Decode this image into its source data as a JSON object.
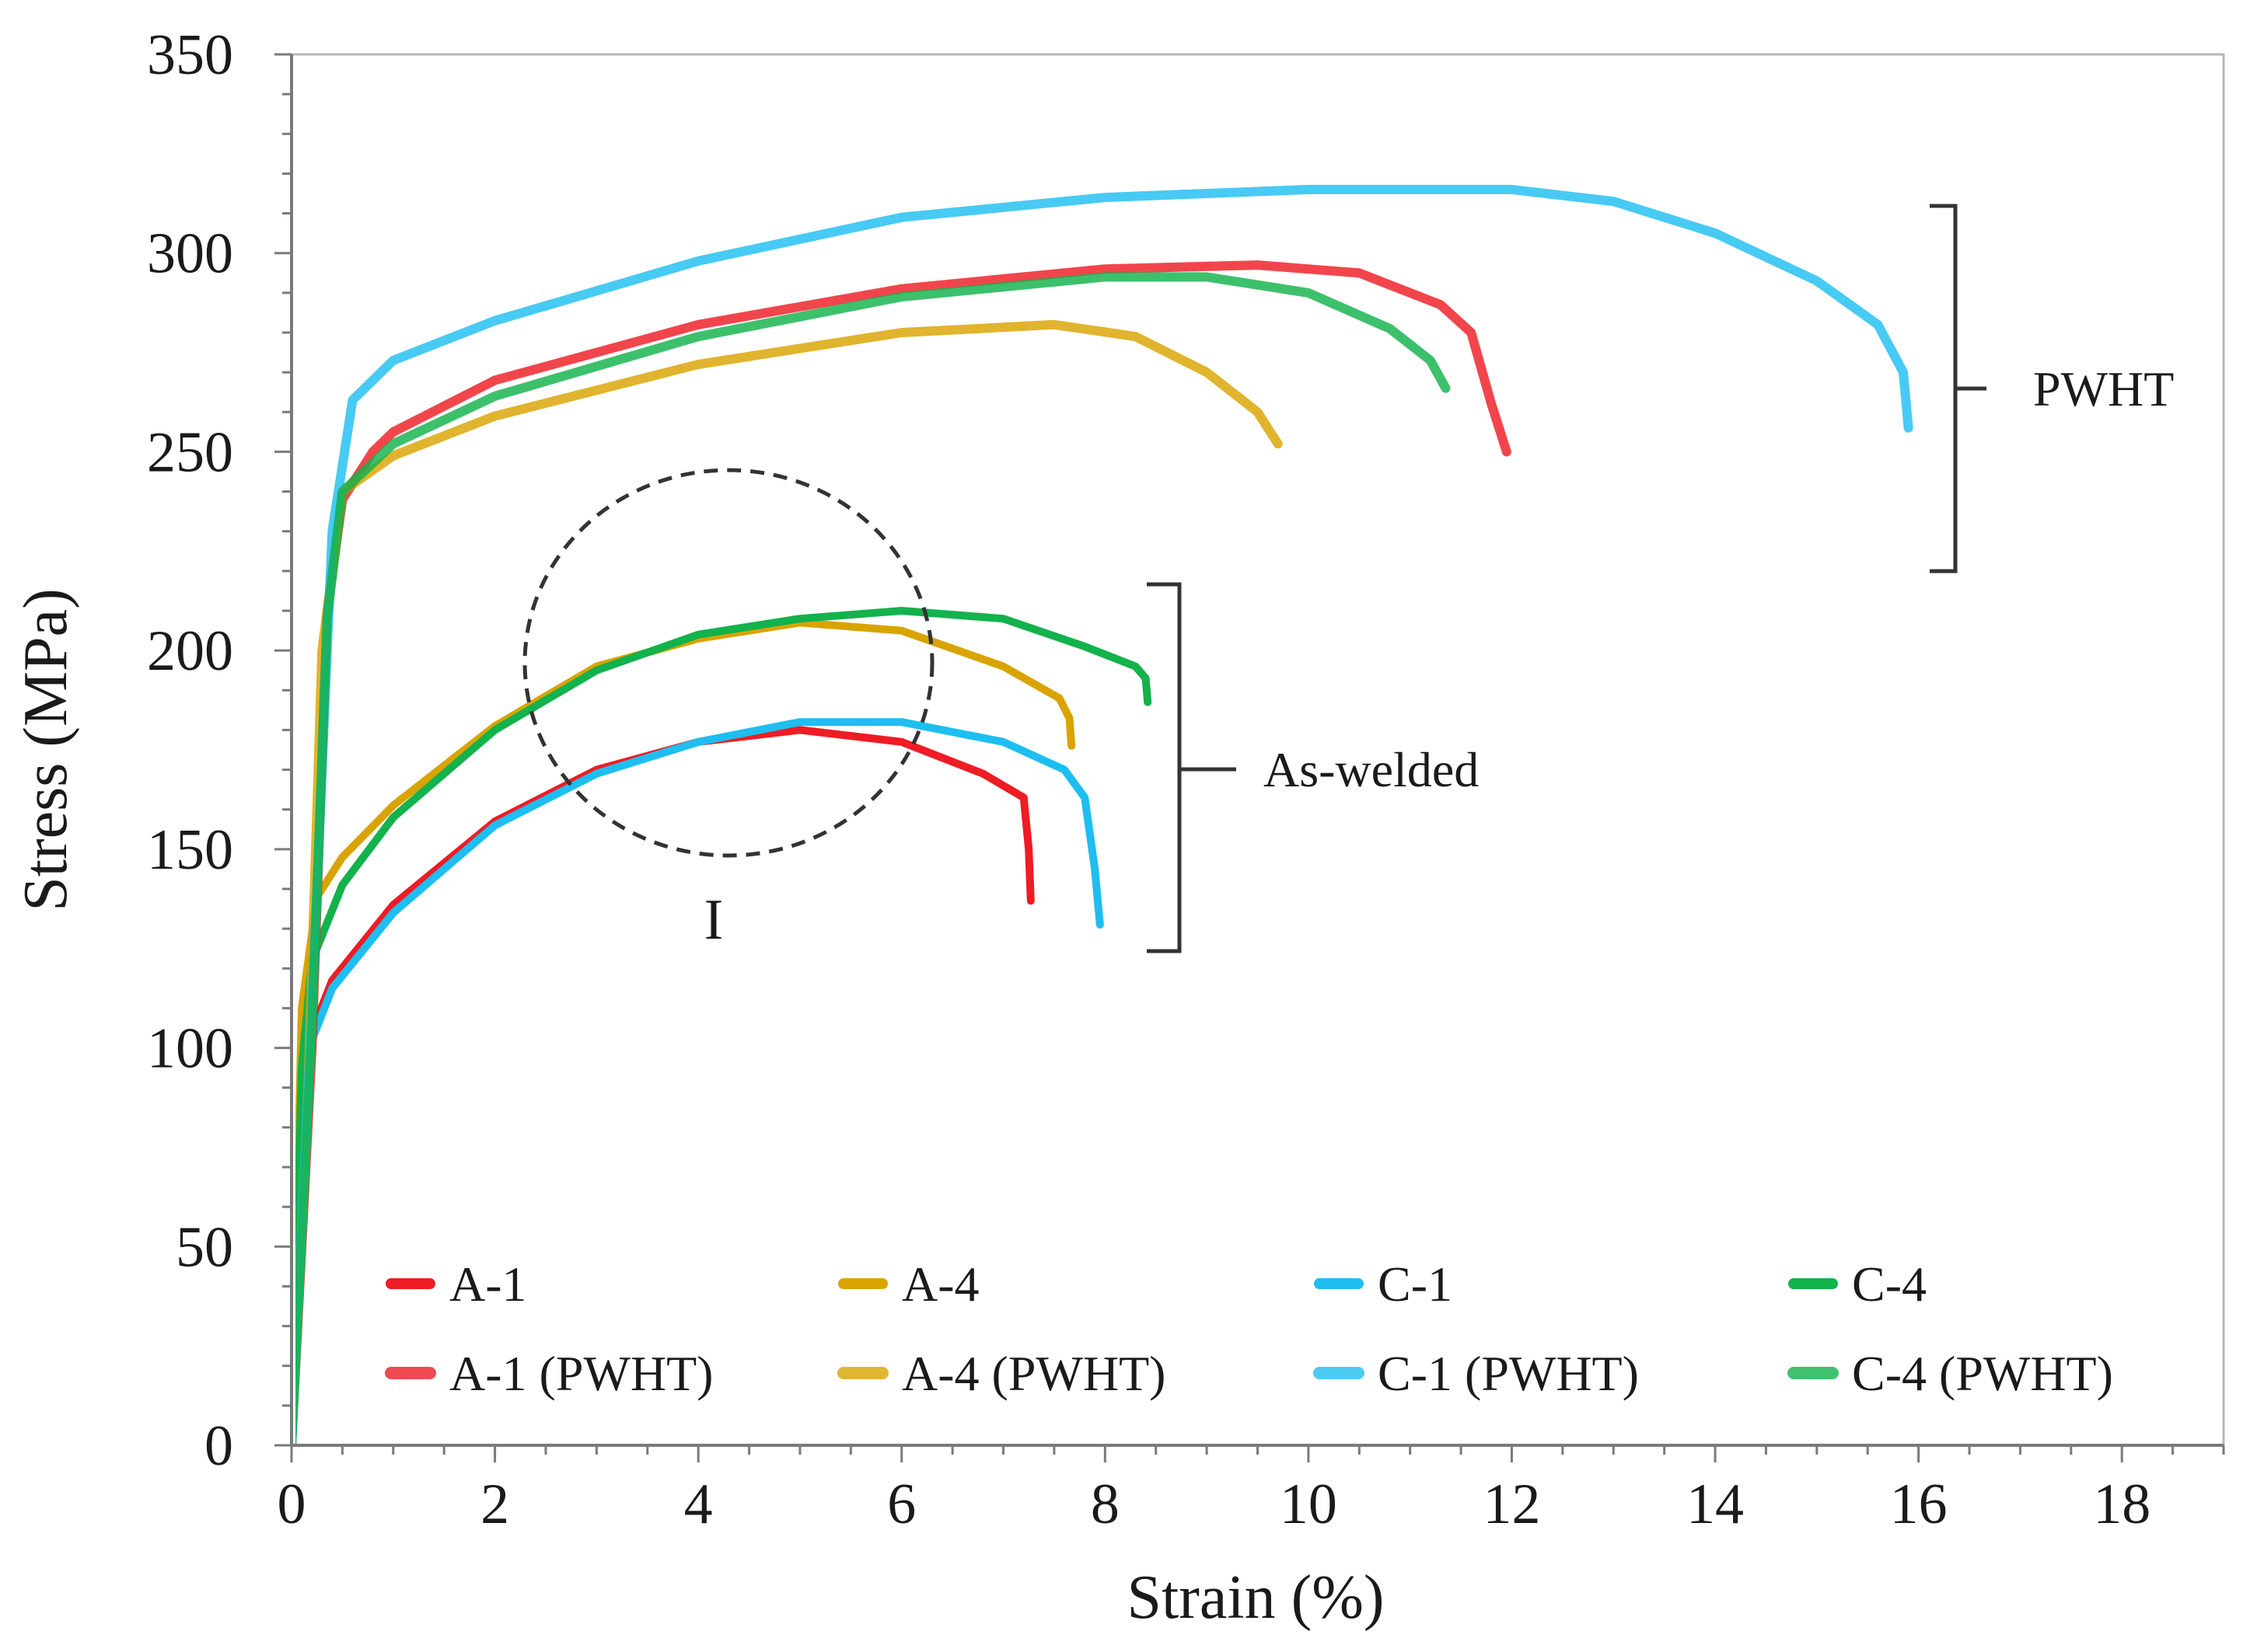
{
  "chart_data": {
    "type": "line",
    "title": "",
    "xlabel": "Strain (%)",
    "ylabel": "Stress (MPa)",
    "xlim": [
      0,
      19
    ],
    "ylim": [
      0,
      350
    ],
    "x_ticks": [
      "0",
      "2",
      "4",
      "6",
      "8",
      "10",
      "12",
      "14",
      "16",
      "18"
    ],
    "y_ticks": [
      "0",
      "50",
      "100",
      "150",
      "200",
      "250",
      "300",
      "350"
    ],
    "grid": false,
    "legend_position": "bottom",
    "series": [
      {
        "name": "A-1",
        "style": "solid",
        "color": "#ee1c25",
        "points": [
          [
            0,
            0
          ],
          [
            0.1,
            75
          ],
          [
            0.2,
            104
          ],
          [
            0.4,
            117
          ],
          [
            1,
            136
          ],
          [
            2,
            157
          ],
          [
            3,
            170
          ],
          [
            4,
            177
          ],
          [
            5,
            180
          ],
          [
            6,
            177
          ],
          [
            6.8,
            169
          ],
          [
            7.2,
            163
          ],
          [
            7.25,
            150
          ],
          [
            7.27,
            137
          ]
        ]
      },
      {
        "name": "A-4",
        "style": "solid",
        "color": "#d9a400",
        "points": [
          [
            0,
            0
          ],
          [
            0.1,
            110
          ],
          [
            0.25,
            138
          ],
          [
            0.5,
            148
          ],
          [
            1,
            161
          ],
          [
            2,
            181
          ],
          [
            3,
            196
          ],
          [
            4,
            203
          ],
          [
            5,
            207
          ],
          [
            6,
            205
          ],
          [
            7,
            196
          ],
          [
            7.55,
            188
          ],
          [
            7.65,
            183
          ],
          [
            7.67,
            176
          ]
        ]
      },
      {
        "name": "C-1",
        "style": "solid",
        "color": "#1ebef0",
        "points": [
          [
            0,
            0
          ],
          [
            0.1,
            70
          ],
          [
            0.2,
            102
          ],
          [
            0.4,
            115
          ],
          [
            1,
            134
          ],
          [
            2,
            156
          ],
          [
            3,
            169
          ],
          [
            4,
            177
          ],
          [
            5,
            182
          ],
          [
            6,
            182
          ],
          [
            7,
            177
          ],
          [
            7.6,
            170
          ],
          [
            7.8,
            163
          ],
          [
            7.9,
            145
          ],
          [
            7.95,
            131
          ]
        ]
      },
      {
        "name": "C-4",
        "style": "solid",
        "color": "#12b24c",
        "points": [
          [
            0,
            0
          ],
          [
            0.1,
            95
          ],
          [
            0.2,
            122
          ],
          [
            0.5,
            141
          ],
          [
            1,
            158
          ],
          [
            2,
            180
          ],
          [
            3,
            195
          ],
          [
            4,
            204
          ],
          [
            5,
            208
          ],
          [
            6,
            210
          ],
          [
            7,
            208
          ],
          [
            7.8,
            201
          ],
          [
            8.3,
            196
          ],
          [
            8.4,
            193
          ],
          [
            8.42,
            187
          ]
        ]
      },
      {
        "name": "A-1 (PWHT)",
        "style": "pwht",
        "color": "#ee1c25",
        "points": [
          [
            0,
            0
          ],
          [
            0.2,
            100
          ],
          [
            0.35,
            210
          ],
          [
            0.5,
            238
          ],
          [
            0.8,
            250
          ],
          [
            1,
            255
          ],
          [
            2,
            268
          ],
          [
            4,
            282
          ],
          [
            6,
            291
          ],
          [
            8,
            296
          ],
          [
            9.5,
            297
          ],
          [
            10.5,
            295
          ],
          [
            11.3,
            287
          ],
          [
            11.6,
            280
          ],
          [
            11.8,
            262
          ],
          [
            11.95,
            250
          ]
        ]
      },
      {
        "name": "A-4 (PWHT)",
        "style": "pwht",
        "color": "#d9a400",
        "points": [
          [
            0,
            0
          ],
          [
            0.15,
            80
          ],
          [
            0.3,
            200
          ],
          [
            0.5,
            240
          ],
          [
            1,
            249
          ],
          [
            2,
            259
          ],
          [
            4,
            272
          ],
          [
            6,
            280
          ],
          [
            7.5,
            282
          ],
          [
            8.3,
            279
          ],
          [
            9,
            270
          ],
          [
            9.5,
            260
          ],
          [
            9.7,
            252
          ]
        ]
      },
      {
        "name": "C-1 (PWHT)",
        "style": "pwht",
        "color": "#1ebef0",
        "points": [
          [
            0,
            0
          ],
          [
            0.2,
            110
          ],
          [
            0.4,
            230
          ],
          [
            0.6,
            263
          ],
          [
            1,
            273
          ],
          [
            2,
            283
          ],
          [
            4,
            298
          ],
          [
            6,
            309
          ],
          [
            8,
            314
          ],
          [
            10,
            316
          ],
          [
            12,
            316
          ],
          [
            13,
            313
          ],
          [
            14,
            305
          ],
          [
            15,
            293
          ],
          [
            15.6,
            282
          ],
          [
            15.85,
            270
          ],
          [
            15.9,
            256
          ]
        ]
      },
      {
        "name": "C-4 (PWHT)",
        "style": "pwht",
        "color": "#12b24c",
        "points": [
          [
            0,
            0
          ],
          [
            0.2,
            105
          ],
          [
            0.35,
            208
          ],
          [
            0.5,
            240
          ],
          [
            1,
            252
          ],
          [
            2,
            264
          ],
          [
            4,
            279
          ],
          [
            6,
            289
          ],
          [
            8,
            294
          ],
          [
            9,
            294
          ],
          [
            10,
            290
          ],
          [
            10.8,
            281
          ],
          [
            11.2,
            273
          ],
          [
            11.35,
            266
          ]
        ]
      }
    ],
    "annotations": {
      "pwht_bracket_label": "PWHT",
      "as_welded_bracket_label": "As-welded",
      "circle_label": "I"
    }
  }
}
